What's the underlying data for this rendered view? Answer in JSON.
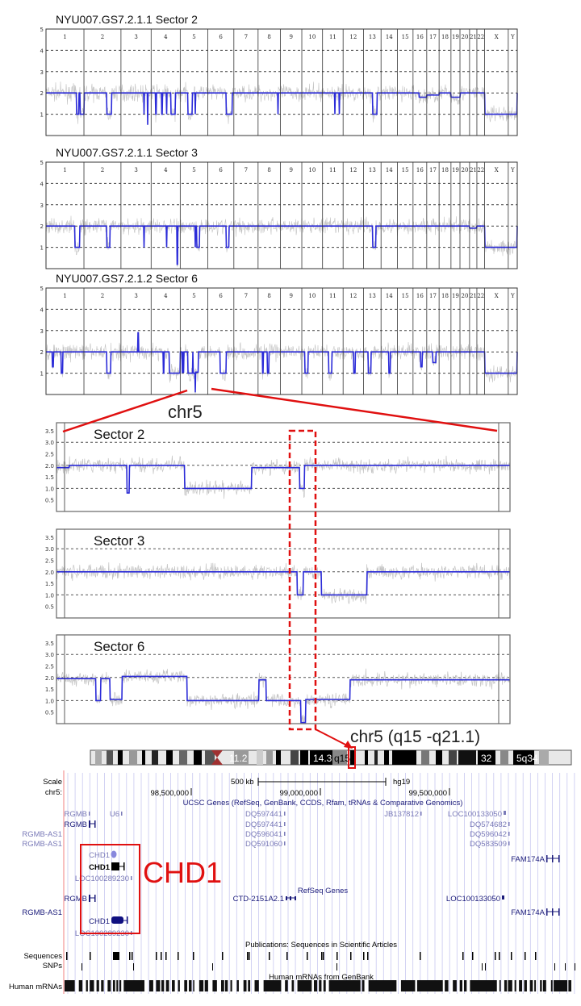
{
  "colors": {
    "noise": "#c4c4c4",
    "segment": "#2b2bd8",
    "highlight": "#e01010",
    "gene_dark": "#1a1a7a",
    "gene_light": "#7a7ab8",
    "grid_blue": "#c8c8f0"
  },
  "chart_data": [
    {
      "type": "line",
      "title": "NYU007.GS7.2.1.1 Sector 2",
      "ylim": [
        0,
        5
      ],
      "yticks": [
        "5",
        "4",
        "3",
        "2",
        "1"
      ],
      "chromosomes": [
        "1",
        "2",
        "3",
        "4",
        "5",
        "6",
        "7",
        "8",
        "9",
        "10",
        "11",
        "12",
        "13",
        "14",
        "15",
        "16",
        "17",
        "18",
        "19",
        "20",
        "21",
        "22",
        "X",
        "Y"
      ],
      "baseline": 2,
      "segments": [
        [
          "1",
          200,
          215,
          1
        ],
        [
          "1",
          225,
          249,
          1
        ],
        [
          "2",
          150,
          180,
          1
        ],
        [
          "3",
          150,
          152,
          1
        ],
        [
          "3",
          175,
          177,
          0.5
        ],
        [
          "4",
          30,
          33,
          1
        ],
        [
          "4",
          70,
          73,
          1
        ],
        [
          "4",
          100,
          103,
          1
        ],
        [
          "4",
          130,
          160,
          1
        ],
        [
          "5",
          26,
          27,
          1
        ],
        [
          "5",
          50,
          78,
          1
        ],
        [
          "5",
          98,
          100,
          1
        ],
        [
          "6",
          120,
          160,
          1
        ],
        [
          "8",
          130,
          131,
          1
        ],
        [
          "11",
          80,
          82,
          1
        ],
        [
          "11",
          110,
          112,
          1
        ],
        [
          "13",
          60,
          90,
          1
        ],
        [
          "16",
          40,
          90,
          1.8
        ],
        [
          "17",
          0,
          81,
          1.9
        ],
        [
          "19",
          0,
          59,
          1.8
        ],
        [
          "X",
          0,
          155,
          1
        ],
        [
          "Y",
          0,
          59,
          1
        ]
      ]
    },
    {
      "type": "line",
      "title": "NYU007.GS7.2.1.1  Sector 3",
      "ylim": [
        0,
        5
      ],
      "yticks": [
        "5",
        "4",
        "3",
        "2",
        "1"
      ],
      "chromosomes": [
        "1",
        "2",
        "3",
        "4",
        "5",
        "6",
        "7",
        "8",
        "9",
        "10",
        "11",
        "12",
        "13",
        "14",
        "15",
        "16",
        "17",
        "18",
        "19",
        "20",
        "21",
        "22",
        "X",
        "Y"
      ],
      "baseline": 2,
      "segments": [
        [
          "1",
          190,
          220,
          1
        ],
        [
          "2",
          150,
          170,
          1
        ],
        [
          "3",
          150,
          152,
          1
        ],
        [
          "4",
          100,
          102,
          1
        ],
        [
          "4",
          170,
          175,
          0.2
        ],
        [
          "5",
          97,
          100,
          1
        ],
        [
          "5",
          107,
          126,
          1
        ],
        [
          "6",
          120,
          140,
          1
        ],
        [
          "13",
          60,
          80,
          1
        ],
        [
          "21",
          0,
          48,
          1.9
        ],
        [
          "X",
          0,
          155,
          1
        ],
        [
          "Y",
          0,
          59,
          1
        ]
      ]
    },
    {
      "type": "line",
      "title": "NYU007.GS7.2.1.2 Sector 6",
      "ylim": [
        0,
        5
      ],
      "yticks": [
        "5",
        "4",
        "3",
        "2",
        "1"
      ],
      "chromosomes": [
        "1",
        "2",
        "3",
        "4",
        "5",
        "6",
        "7",
        "8",
        "9",
        "10",
        "11",
        "12",
        "13",
        "14",
        "15",
        "16",
        "17",
        "18",
        "19",
        "20",
        "21",
        "22",
        "X",
        "Y"
      ],
      "baseline": 2,
      "segments": [
        [
          "1",
          40,
          50,
          1.3
        ],
        [
          "1",
          100,
          110,
          1
        ],
        [
          "2",
          150,
          175,
          1
        ],
        [
          "3",
          110,
          115,
          2.9
        ],
        [
          "4",
          80,
          85,
          1
        ],
        [
          "4",
          120,
          190,
          1
        ],
        [
          "5",
          13,
          15,
          1
        ],
        [
          "5",
          19,
          24,
          1.05
        ],
        [
          "5",
          51,
          81,
          1
        ],
        [
          "5",
          84,
          98,
          1
        ],
        [
          "5",
          98,
          100,
          0.1
        ],
        [
          "5",
          100,
          119,
          1.05
        ],
        [
          "6",
          80,
          120,
          1
        ],
        [
          "8",
          30,
          35,
          1
        ],
        [
          "8",
          60,
          70,
          1
        ],
        [
          "10",
          20,
          40,
          1
        ],
        [
          "11",
          40,
          60,
          1
        ],
        [
          "12",
          70,
          80,
          1
        ],
        [
          "13",
          30,
          50,
          1
        ],
        [
          "14",
          50,
          60,
          1
        ],
        [
          "16",
          50,
          60,
          1.3
        ],
        [
          "17",
          40,
          60,
          1.5
        ],
        [
          "X",
          0,
          155,
          1
        ],
        [
          "Y",
          0,
          59,
          1
        ]
      ]
    },
    {
      "type": "line",
      "title": "Sector 2",
      "ylim": [
        0,
        3.5
      ],
      "yticks": [
        "3.5",
        "3.0",
        "2.5",
        "2.0",
        "1.5",
        "1.0",
        "0.5"
      ],
      "segments": [
        [
          0,
          2,
          1.9
        ],
        [
          2,
          26,
          2
        ],
        [
          26,
          27,
          0.8
        ],
        [
          27,
          50,
          2
        ],
        [
          50,
          78,
          1
        ],
        [
          78,
          98,
          1.9
        ],
        [
          98,
          100,
          1
        ],
        [
          100,
          181,
          2
        ]
      ]
    },
    {
      "type": "line",
      "title": "Sector 3",
      "ylim": [
        0,
        3.5
      ],
      "yticks": [
        "3.5",
        "3.0",
        "2.5",
        "2.0",
        "1.5",
        "1.0",
        "0.5"
      ],
      "segments": [
        [
          0,
          97,
          2
        ],
        [
          97,
          99.5,
          1
        ],
        [
          99.5,
          107,
          2
        ],
        [
          107,
          126,
          1
        ],
        [
          126,
          181,
          2
        ]
      ]
    },
    {
      "type": "line",
      "title": "Sector 6",
      "ylim": [
        0,
        3.5
      ],
      "yticks": [
        "3.5",
        "3.0",
        "2.5",
        "2.0",
        "1.5",
        "1.0",
        "0.5"
      ],
      "segments": [
        [
          0,
          13,
          1.95
        ],
        [
          13,
          15,
          1
        ],
        [
          15,
          19,
          1.95
        ],
        [
          19,
          24,
          1.05
        ],
        [
          24,
          51,
          2.05
        ],
        [
          51,
          81,
          1
        ],
        [
          81,
          84,
          1.9
        ],
        [
          84,
          98.5,
          1
        ],
        [
          98.5,
          100.5,
          0.05
        ],
        [
          100.5,
          119,
          1.05
        ],
        [
          119,
          181,
          1.9
        ]
      ]
    }
  ],
  "annotations": {
    "chr5_label": "chr5",
    "region_label": "chr5 (q15 -q21.1)",
    "chd1_callout": "CHD1"
  },
  "ideogram": {
    "bands": [
      "11.2",
      "14.3",
      "q15",
      "32",
      "5q34"
    ]
  },
  "browser": {
    "scale_label": "Scale",
    "chrom_label": "chr5:",
    "scale_bar": "500 kb",
    "assembly": "hg19",
    "positions": [
      "98,500,000",
      "99,000,000",
      "99,500,000"
    ],
    "ucsc_track_title": "UCSC Genes (RefSeq, GenBank, CCDS, Rfam, tRNAs & Comparative Genomics)",
    "refseq_track_title": "RefSeq Genes",
    "pubs_track_title": "Publications: Sequences in Scientific Articles",
    "mrna_track_title": "Human mRNAs from GenBank",
    "track_labels": [
      "Sequences",
      "SNPs",
      "Human mRNAs"
    ],
    "genes": [
      "RGMB",
      "U6",
      "DQ597441",
      "JB137812",
      "LOC100133050",
      "RGMB",
      "DQ597441",
      "DQ574682",
      "RGMB-AS1",
      "DQ596041",
      "DQ596042",
      "RGMB-AS1",
      "DQ591060",
      "DQ583509",
      "CHD1",
      "CHD1",
      "FAM174A",
      "LOC100289230",
      "RGMB",
      "CTD-2151A2.1",
      "LOC100133050",
      "RGMB-AS1",
      "FAM174A",
      "CHD1",
      "LOC100289230"
    ]
  }
}
